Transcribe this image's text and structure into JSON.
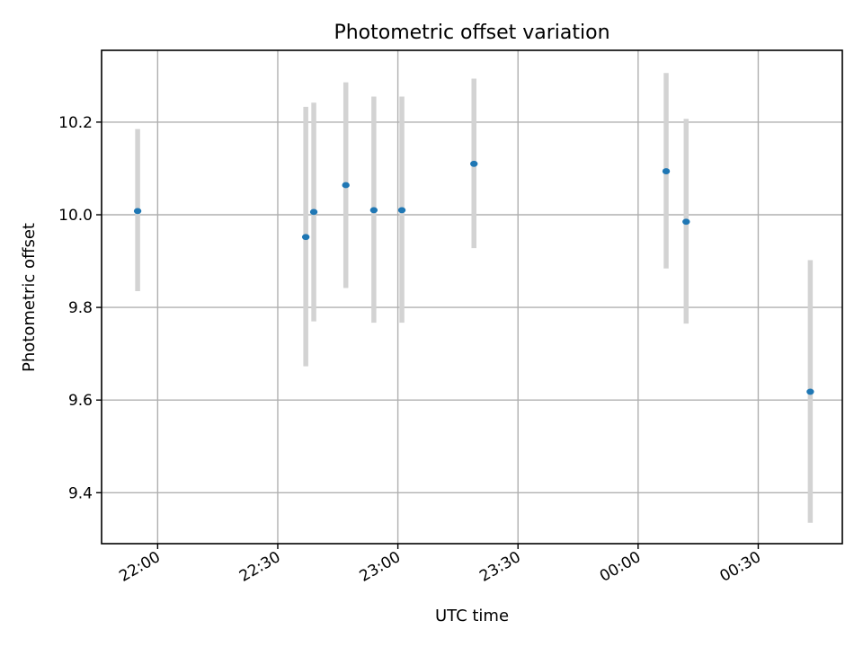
{
  "chart_data": {
    "type": "scatter",
    "title": "Photometric offset variation",
    "xlabel": "UTC time",
    "ylabel": "Photometric offset",
    "x_ticks": [
      "22:00",
      "22:30",
      "23:00",
      "23:30",
      "00:00",
      "00:30"
    ],
    "y_ticks": [
      "9.4",
      "9.6",
      "9.8",
      "10.0",
      "10.2"
    ],
    "xlim": [
      "21:46",
      "00:51"
    ],
    "ylim": [
      9.29,
      10.355
    ],
    "grid": true,
    "series": [
      {
        "marker_color": "#1f77b4",
        "errorbar_color": "#d3d3d3",
        "points": [
          {
            "x": "21:55",
            "y": 10.008,
            "y_low": 9.835,
            "y_high": 10.185
          },
          {
            "x": "22:37",
            "y": 9.952,
            "y_low": 9.673,
            "y_high": 10.233
          },
          {
            "x": "22:39",
            "y": 10.006,
            "y_low": 9.77,
            "y_high": 10.242
          },
          {
            "x": "22:47",
            "y": 10.064,
            "y_low": 9.842,
            "y_high": 10.286
          },
          {
            "x": "22:54",
            "y": 10.01,
            "y_low": 9.767,
            "y_high": 10.255
          },
          {
            "x": "23:01",
            "y": 10.01,
            "y_low": 9.767,
            "y_high": 10.255
          },
          {
            "x": "23:19",
            "y": 10.11,
            "y_low": 9.928,
            "y_high": 10.294
          },
          {
            "x": "00:07",
            "y": 10.094,
            "y_low": 9.884,
            "y_high": 10.306
          },
          {
            "x": "00:12",
            "y": 9.985,
            "y_low": 9.765,
            "y_high": 10.207
          },
          {
            "x": "00:43",
            "y": 9.618,
            "y_low": 9.335,
            "y_high": 9.902
          }
        ]
      }
    ]
  }
}
